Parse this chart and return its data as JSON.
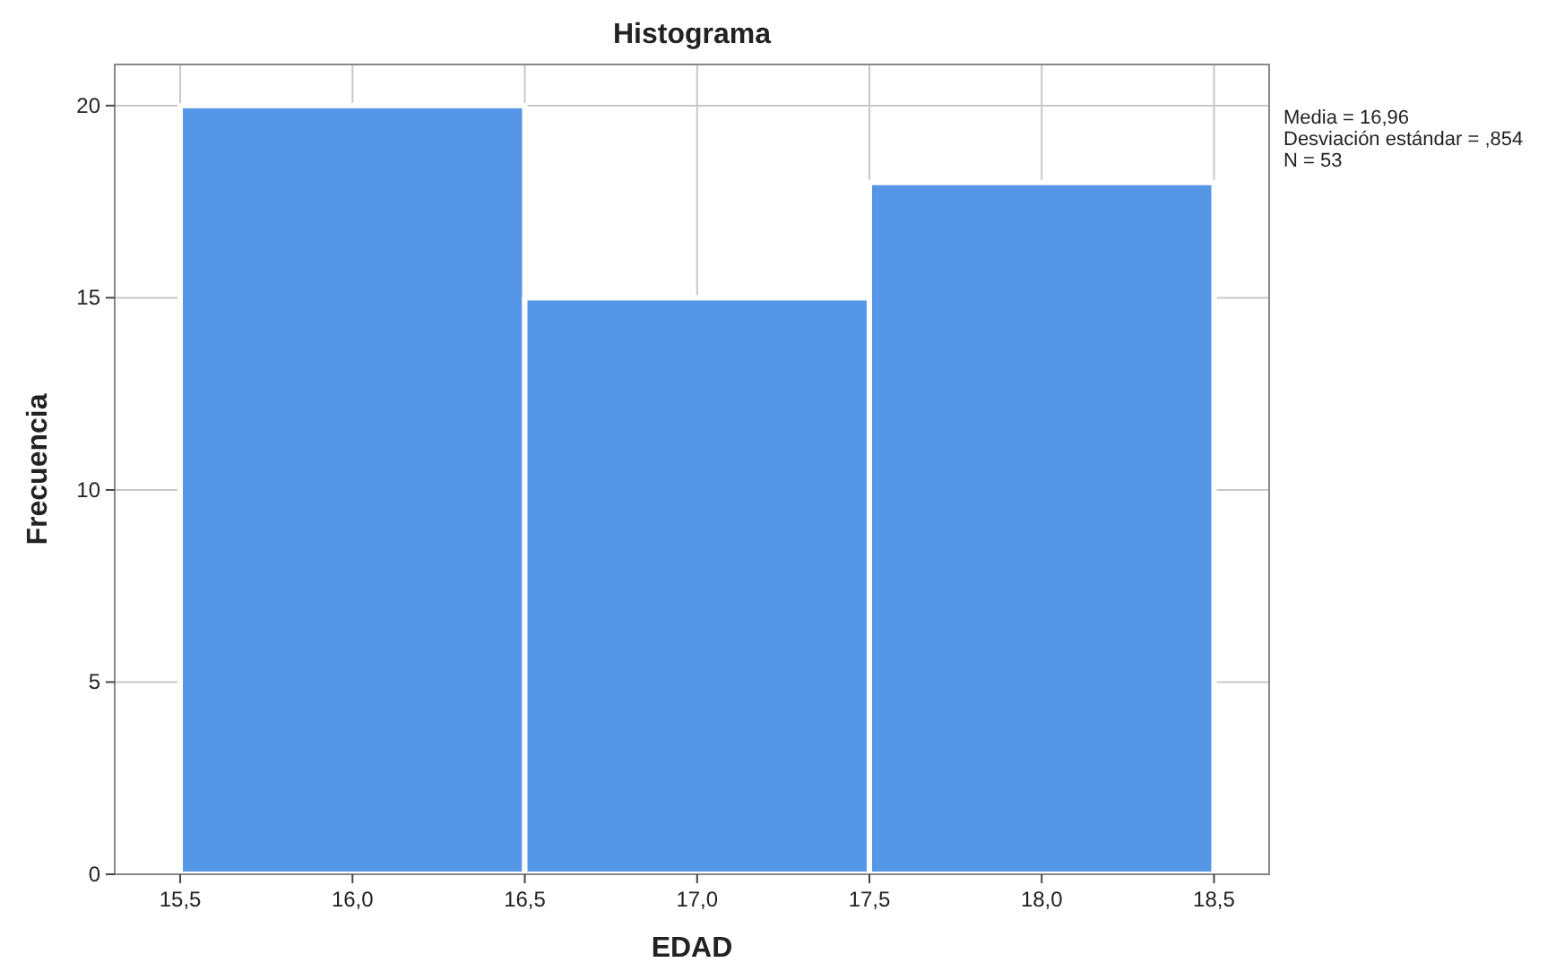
{
  "chart_data": {
    "type": "histogram",
    "title": "Histograma",
    "xlabel": "EDAD",
    "ylabel": "Frecuencia",
    "bins": [
      15.5,
      16.5,
      17.5,
      18.5
    ],
    "values": [
      20,
      15,
      18
    ],
    "color": "#5596e6",
    "xlim": [
      15.31,
      18.66
    ],
    "ylim": [
      0,
      21.07
    ],
    "xticks": [
      {
        "value": 15.5,
        "label": "15,5"
      },
      {
        "value": 16,
        "label": "16,0"
      },
      {
        "value": 16.5,
        "label": "16,5"
      },
      {
        "value": 17,
        "label": "17,0"
      },
      {
        "value": 17.5,
        "label": "17,5"
      },
      {
        "value": 18,
        "label": "18,0"
      },
      {
        "value": 18.5,
        "label": "18,5"
      }
    ],
    "yticks": [
      0,
      5,
      10,
      15,
      20
    ],
    "grid": true,
    "annotations": [
      "Media = 16,96",
      "Desviación estándar = ,854",
      "N = 53"
    ]
  }
}
